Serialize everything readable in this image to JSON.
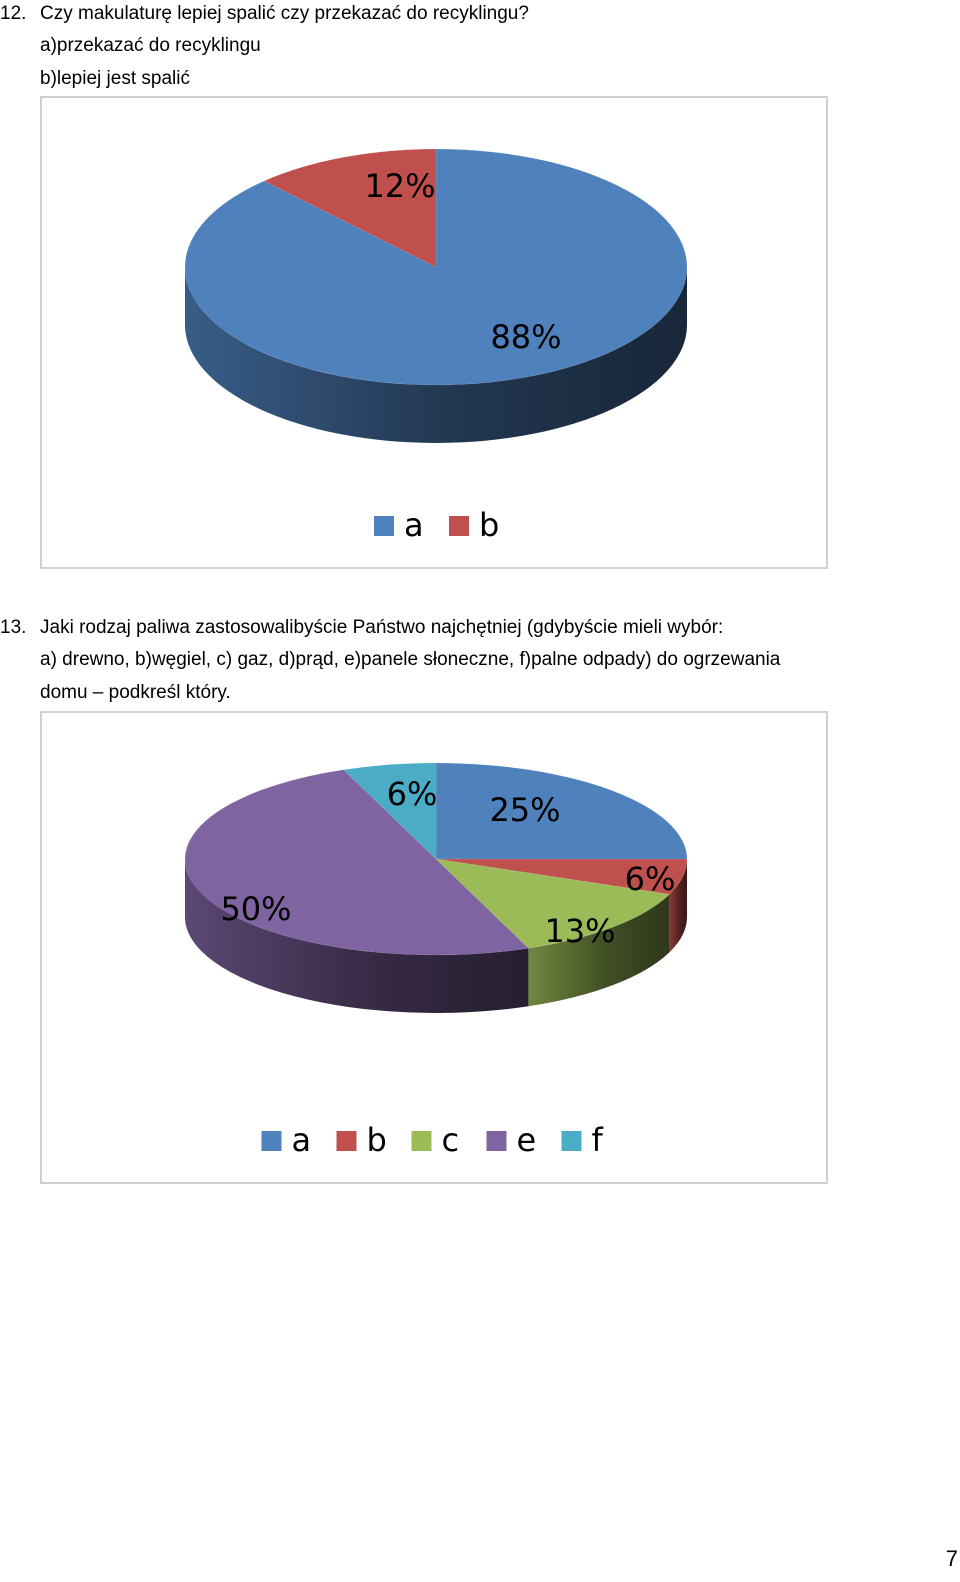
{
  "q12": {
    "number": "12.",
    "question": "Czy makulaturę lepiej spalić czy przekazać do recyklingu?",
    "option_a": "a)przekazać do recyklingu",
    "option_b": "b)lepiej jest spalić"
  },
  "q13": {
    "number": "13.",
    "line1": "Jaki rodzaj paliwa zastosowalibyście Państwo najchętniej (gdybyście mieli wybór:",
    "line2": "a) drewno, b)węgiel, c) gaz, d)prąd, e)panele słoneczne, f)palne odpady) do ogrzewania",
    "line3": "domu – podkreśl który."
  },
  "page_number": "7",
  "chart_data": [
    {
      "type": "pie",
      "style": "3d",
      "title": "",
      "categories": [
        "a",
        "b"
      ],
      "values": [
        88,
        12
      ],
      "labels": [
        "88%",
        "12%"
      ],
      "colors": [
        "#4F81BD",
        "#C0504D"
      ],
      "legend": "bottom"
    },
    {
      "type": "pie",
      "style": "3d",
      "title": "",
      "categories": [
        "a",
        "b",
        "c",
        "e",
        "f"
      ],
      "values": [
        25,
        6,
        13,
        50,
        6
      ],
      "labels": [
        "25%",
        "6%",
        "13%",
        "50%",
        "6%"
      ],
      "colors": [
        "#4F81BD",
        "#C0504D",
        "#9BBB59",
        "#8064A2",
        "#4BACC6"
      ],
      "legend": "bottom"
    }
  ]
}
